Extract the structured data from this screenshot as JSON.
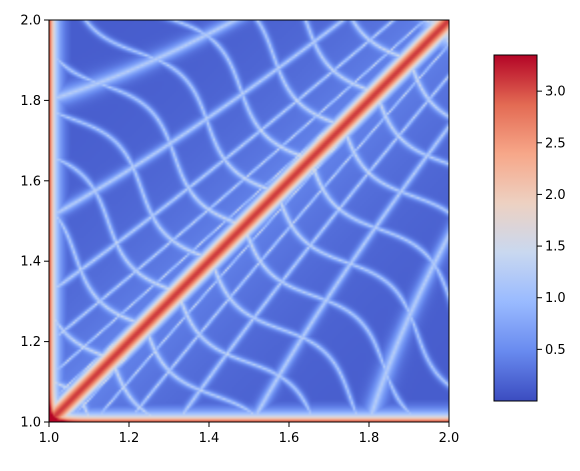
{
  "chart_data": {
    "type": "heatmap",
    "title": "",
    "xlabel": "",
    "ylabel": "",
    "xlim": [
      1.0,
      2.0
    ],
    "ylim": [
      1.0,
      2.0
    ],
    "x_ticks": [
      1.0,
      1.2,
      1.4,
      1.6,
      1.8,
      2.0
    ],
    "x_tick_labels": [
      "1.0",
      "1.2",
      "1.4",
      "1.6",
      "1.8",
      "2.0"
    ],
    "y_ticks": [
      1.0,
      1.2,
      1.4,
      1.6,
      1.8,
      2.0
    ],
    "y_tick_labels": [
      "1.0",
      "1.2",
      "1.4",
      "1.6",
      "1.8",
      "2.0"
    ],
    "colormap": "coolwarm",
    "colormap_stops": [
      "#3b4cc0",
      "#688aef",
      "#99baff",
      "#c9d8f0",
      "#edd1c2",
      "#f7a789",
      "#e36a53",
      "#b40426"
    ],
    "value_range": [
      0.0,
      3.35
    ],
    "colorbar": {
      "ticks": [
        0.5,
        1.0,
        1.5,
        2.0,
        2.5,
        3.0
      ],
      "tick_labels": [
        "0.5",
        "1.0",
        "1.5",
        "2.0",
        "2.5",
        "3.0"
      ]
    },
    "grid": false,
    "description_of_field": "Symmetric about the diagonal x=y; high values (~3) along the diagonal and along the edges x=1, y=1; low values (~0.1) inside cells separated by light-blue ridges (~1.2)."
  }
}
